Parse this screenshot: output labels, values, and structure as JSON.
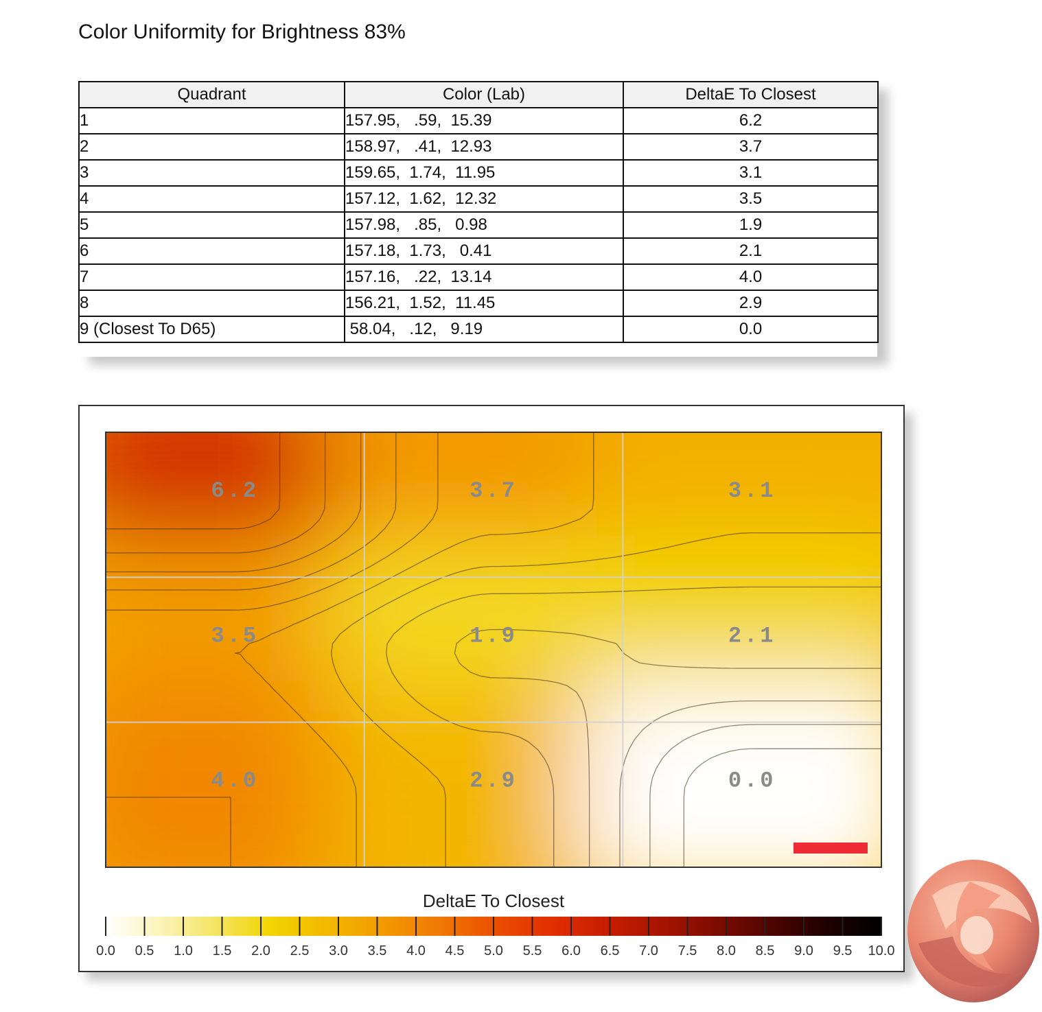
{
  "title": "Color Uniformity for Brightness 83%",
  "table": {
    "headers": [
      "Quadrant",
      "Color (Lab)",
      "DeltaE To Closest"
    ],
    "rows": [
      {
        "quadrant": "1",
        "lab": "157.95,   .59,  15.39",
        "delta": "6.2"
      },
      {
        "quadrant": "2",
        "lab": "158.97,   .41,  12.93",
        "delta": "3.7"
      },
      {
        "quadrant": "3",
        "lab": "159.65,  1.74,  11.95",
        "delta": "3.1"
      },
      {
        "quadrant": "4",
        "lab": "157.12,  1.62,  12.32",
        "delta": "3.5"
      },
      {
        "quadrant": "5",
        "lab": "157.98,   .85,   0.98",
        "delta": "1.9"
      },
      {
        "quadrant": "6",
        "lab": "157.18,  1.73,   0.41",
        "delta": "2.1"
      },
      {
        "quadrant": "7",
        "lab": "157.16,   .22,  13.14",
        "delta": "4.0"
      },
      {
        "quadrant": "8",
        "lab": "156.21,  1.52,  11.45",
        "delta": "2.9"
      },
      {
        "quadrant": "9 (Closest To D65)",
        "lab": " 58.04,   .12,   9.19",
        "delta": "0.0"
      }
    ]
  },
  "chart_data": {
    "type": "heatmap",
    "title": "",
    "colorbar_label": "DeltaE To Closest",
    "grid": [
      [
        "6.2",
        "3.7",
        "3.1"
      ],
      [
        "3.5",
        "1.9",
        "2.1"
      ],
      [
        "4.0",
        "2.9",
        "0.0"
      ]
    ],
    "values": [
      [
        6.2,
        3.7,
        3.1
      ],
      [
        3.5,
        1.9,
        2.1
      ],
      [
        4.0,
        2.9,
        0.0
      ]
    ],
    "colorbar_ticks": [
      "0.0",
      "0.5",
      "1.0",
      "1.5",
      "2.0",
      "2.5",
      "3.0",
      "3.5",
      "4.0",
      "4.5",
      "5.0",
      "5.5",
      "6.0",
      "6.5",
      "7.0",
      "7.5",
      "8.0",
      "8.5",
      "9.0",
      "9.5",
      "10.0"
    ],
    "colorbar_range": [
      0,
      10
    ],
    "colorbar_colors": [
      "#ffffff",
      "#fbf3b8",
      "#f4e460",
      "#f2d400",
      "#f3b800",
      "#f29a00",
      "#f07a05",
      "#ea5000",
      "#e23000",
      "#c81e00",
      "#a81400",
      "#7e0c00",
      "#4e0500",
      "#1e0100",
      "#000000"
    ],
    "grid_lines": true,
    "contour_lines": true,
    "marker_color": "#ee2a35"
  },
  "logo": {
    "name": "watermark-logo-icon"
  }
}
